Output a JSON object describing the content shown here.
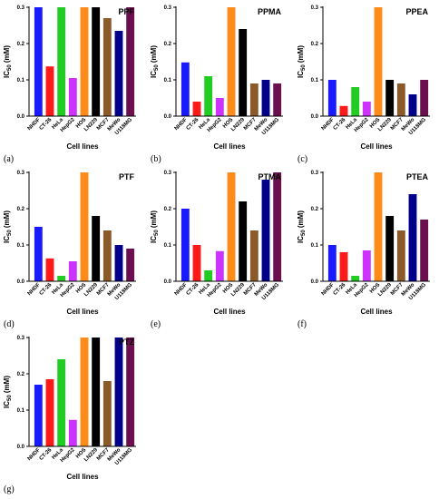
{
  "figure": {
    "chart_data": [
      {
        "type": "bar",
        "panel": "(a)",
        "title": "PPF",
        "xlabel": "Cell lines",
        "ylabel": "IC50 (mM)",
        "ylim": [
          0,
          0.3
        ],
        "yticks": [
          "0.0",
          "0.1",
          "0.2",
          "0.3"
        ],
        "categories": [
          "NHDF",
          "CT-26",
          "HeLa",
          "HepG2",
          "HOS",
          "LN229",
          "MCF7",
          "MeWo",
          "U118MG"
        ],
        "values": [
          0.3,
          0.137,
          0.3,
          0.105,
          0.3,
          0.3,
          0.27,
          0.235,
          0.3
        ],
        "colors": [
          "#1a1aff",
          "#ff1a1a",
          "#22cc22",
          "#cc33ff",
          "#ff8c1a",
          "#000000",
          "#8b5a2b",
          "#00008b",
          "#6b0f4f"
        ]
      },
      {
        "type": "bar",
        "panel": "(b)",
        "title": "PPMA",
        "xlabel": "Cell lines",
        "ylabel": "IC50 (mM)",
        "ylim": [
          0,
          0.3
        ],
        "yticks": [
          "0.0",
          "0.1",
          "0.2",
          "0.3"
        ],
        "categories": [
          "NHDF",
          "CT-26",
          "HeLa",
          "HepG2",
          "HOS",
          "LN229",
          "MCF7",
          "MeWo",
          "U118MG"
        ],
        "values": [
          0.148,
          0.04,
          0.11,
          0.05,
          0.3,
          0.24,
          0.09,
          0.1,
          0.09
        ],
        "colors": [
          "#1a1aff",
          "#ff1a1a",
          "#22cc22",
          "#cc33ff",
          "#ff8c1a",
          "#000000",
          "#8b5a2b",
          "#00008b",
          "#6b0f4f"
        ]
      },
      {
        "type": "bar",
        "panel": "(c)",
        "title": "PPEA",
        "xlabel": "Cell lines",
        "ylabel": "IC50 (mM)",
        "ylim": [
          0,
          0.3
        ],
        "yticks": [
          "0.0",
          "0.1",
          "0.2",
          "0.3"
        ],
        "categories": [
          "NHDF",
          "CT-26",
          "HeLa",
          "HepG2",
          "HOS",
          "LN229",
          "MCF7",
          "MeWo",
          "U118MG"
        ],
        "values": [
          0.1,
          0.028,
          0.08,
          0.04,
          0.3,
          0.1,
          0.09,
          0.06,
          0.1
        ],
        "colors": [
          "#1a1aff",
          "#ff1a1a",
          "#22cc22",
          "#cc33ff",
          "#ff8c1a",
          "#000000",
          "#8b5a2b",
          "#00008b",
          "#6b0f4f"
        ]
      },
      {
        "type": "bar",
        "panel": "(d)",
        "title": "PTF",
        "xlabel": "Cell lines",
        "ylabel": "IC50 (mM)",
        "ylim": [
          0,
          0.3
        ],
        "yticks": [
          "0.0",
          "0.1",
          "0.2",
          "0.3"
        ],
        "categories": [
          "NHDF",
          "CT-26",
          "HeLa",
          "HepG2",
          "HOS",
          "LN229",
          "MCF7",
          "MeWo",
          "U118MG"
        ],
        "values": [
          0.15,
          0.063,
          0.015,
          0.055,
          0.3,
          0.18,
          0.14,
          0.1,
          0.09
        ],
        "colors": [
          "#1a1aff",
          "#ff1a1a",
          "#22cc22",
          "#cc33ff",
          "#ff8c1a",
          "#000000",
          "#8b5a2b",
          "#00008b",
          "#6b0f4f"
        ]
      },
      {
        "type": "bar",
        "panel": "(e)",
        "title": "PTMA",
        "xlabel": "Cell lines",
        "ylabel": "IC50 (mM)",
        "ylim": [
          0,
          0.3
        ],
        "yticks": [
          "0.0",
          "0.1",
          "0.2",
          "0.3"
        ],
        "categories": [
          "NHDF",
          "CT-26",
          "HeLa",
          "HepG2",
          "HOS",
          "LN229",
          "MCF7",
          "MeWo",
          "U118MG"
        ],
        "values": [
          0.2,
          0.1,
          0.03,
          0.083,
          0.3,
          0.22,
          0.14,
          0.28,
          0.3
        ],
        "colors": [
          "#1a1aff",
          "#ff1a1a",
          "#22cc22",
          "#cc33ff",
          "#ff8c1a",
          "#000000",
          "#8b5a2b",
          "#00008b",
          "#6b0f4f"
        ]
      },
      {
        "type": "bar",
        "panel": "(f)",
        "title": "PTEA",
        "xlabel": "Cell lines",
        "ylabel": "IC50 (mM)",
        "ylim": [
          0,
          0.3
        ],
        "yticks": [
          "0.0",
          "0.1",
          "0.2",
          "0.3"
        ],
        "categories": [
          "NHDF",
          "CT-26",
          "HeLa",
          "HepG2",
          "HOS",
          "LN229",
          "MCF7",
          "MeWo",
          "U118MG"
        ],
        "values": [
          0.1,
          0.08,
          0.015,
          0.085,
          0.3,
          0.18,
          0.14,
          0.24,
          0.17
        ],
        "colors": [
          "#1a1aff",
          "#ff1a1a",
          "#22cc22",
          "#cc33ff",
          "#ff8c1a",
          "#000000",
          "#8b5a2b",
          "#00008b",
          "#6b0f4f"
        ]
      },
      {
        "type": "bar",
        "panel": "(g)",
        "title": "PTZ",
        "xlabel": "Cell lines",
        "ylabel": "IC50 (mM)",
        "ylim": [
          0,
          0.3
        ],
        "yticks": [
          "0.0",
          "0.1",
          "0.2",
          "0.3"
        ],
        "categories": [
          "NHDF",
          "CT-26",
          "HeLa",
          "HepG2",
          "HOS",
          "LN229",
          "MCF7",
          "MeWo",
          "U118MG"
        ],
        "values": [
          0.17,
          0.185,
          0.24,
          0.073,
          0.3,
          0.3,
          0.18,
          0.3,
          0.3
        ],
        "colors": [
          "#1a1aff",
          "#ff1a1a",
          "#22cc22",
          "#cc33ff",
          "#ff8c1a",
          "#000000",
          "#8b5a2b",
          "#00008b",
          "#6b0f4f"
        ]
      }
    ]
  }
}
